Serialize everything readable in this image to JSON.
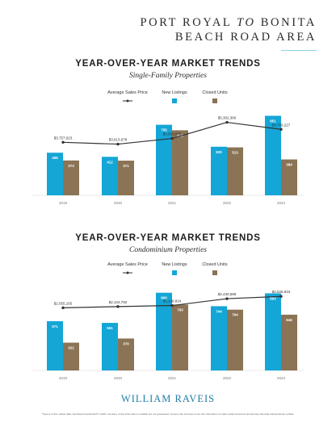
{
  "header": {
    "title_part1": "PORT ROYAL",
    "title_connector": "TO",
    "title_part2": "BONITA",
    "title_line2": "BEACH ROAD AREA"
  },
  "colors": {
    "accent_rule": "#8fd3e8",
    "new_listings": "#14a6d6",
    "closed_units": "#8b7355",
    "avg_price_line": "#333333",
    "brand": "#1f7ea8"
  },
  "chart_data": [
    {
      "type": "bar",
      "title": "YEAR-OVER-YEAR MARKET TRENDS",
      "subtitle": "Single-Family Properties",
      "legend_placement": "top-center",
      "categories": [
        "2019",
        "2020",
        "2021",
        "2022",
        "2023"
      ],
      "series": [
        {
          "name": "New Listings",
          "values": [
            456,
            412,
            755,
            520,
            851
          ]
        },
        {
          "name": "Closed Units",
          "values": [
            373,
            371,
            696,
            513,
            384
          ]
        }
      ],
      "line_series": {
        "name": "Average Sales Price",
        "values": [
          3757023,
          3613678,
          4050998,
          5302366,
          4759227
        ],
        "labels": [
          "$3,757,023",
          "$3,613,678",
          "$4,050,998",
          "$5,302,366",
          "$4,759,227"
        ]
      },
      "ylim": [
        0,
        950
      ],
      "grid": false
    },
    {
      "type": "bar",
      "title": "YEAR-OVER-YEAR MARKET TRENDS",
      "subtitle": "Condominium Properties",
      "legend_placement": "top-center",
      "categories": [
        "2019",
        "2020",
        "2021",
        "2022",
        "2023"
      ],
      "series": [
        {
          "name": "New Listings",
          "values": [
            571,
            551,
            900,
            744,
            893
          ]
        },
        {
          "name": "Closed Units",
          "values": [
            322,
            370,
            763,
            704,
            646
          ]
        }
      ],
      "line_series": {
        "name": "Average Sales Price",
        "values": [
          2055165,
          2104792,
          2148824,
          2430589,
          2525834
        ],
        "labels": [
          "$2,055,165",
          "$2,104,792",
          "$2,148,824",
          "$2,430,589",
          "$2,525,834"
        ]
      },
      "ylim": [
        0,
        1000
      ],
      "grid": false
    }
  ],
  "footer": {
    "brand": "WILLIAM RAVEIS",
    "footnote": "*Source of this market data: Southwest Florida MLS © 2023. Accuracy of this information is reliable but not guaranteed. Anyone who chooses to use this information to make market decisions should have this data independently verified."
  }
}
